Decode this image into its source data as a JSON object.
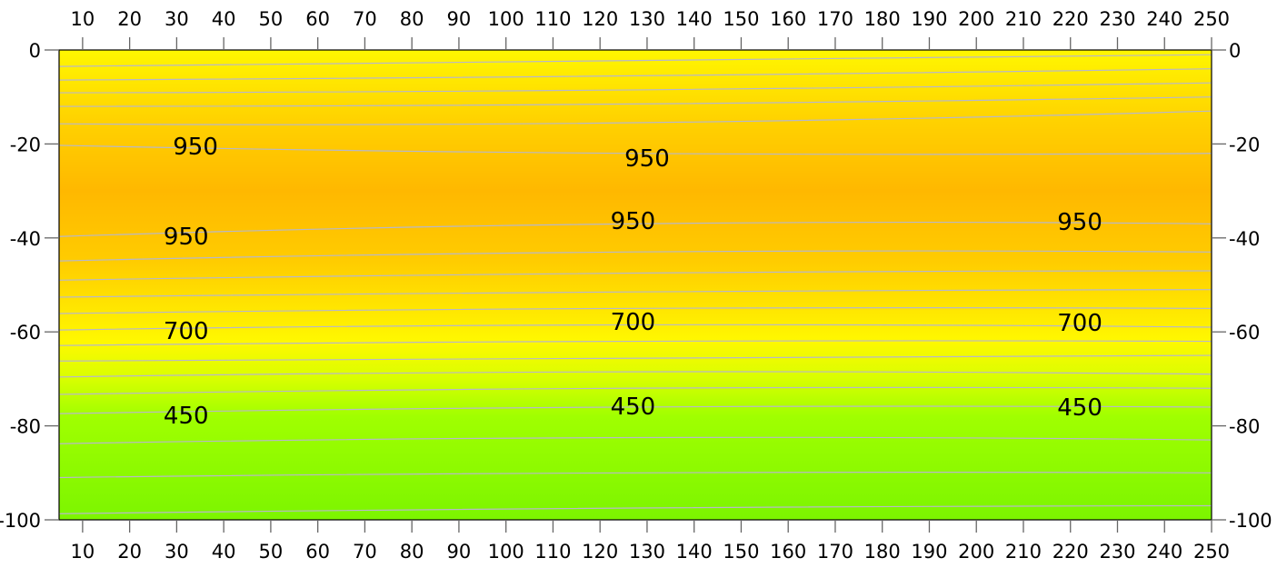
{
  "chart_data": {
    "type": "heatmap",
    "subtype": "filled-contour",
    "title": "",
    "xlabel": "",
    "ylabel": "",
    "xlim": [
      5,
      250
    ],
    "ylim": [
      -100,
      0
    ],
    "x_ticks": [
      10,
      20,
      30,
      40,
      50,
      60,
      70,
      80,
      90,
      100,
      110,
      120,
      130,
      140,
      150,
      160,
      170,
      180,
      190,
      200,
      210,
      220,
      230,
      240,
      250
    ],
    "y_ticks": [
      0,
      -20,
      -40,
      -60,
      -80,
      -100
    ],
    "axes": {
      "top": true,
      "bottom": true,
      "left": true,
      "right": true
    },
    "grid": false,
    "colors": {
      "fill_stops": [
        {
          "y": 0,
          "color": "#fff700"
        },
        {
          "y": -15,
          "color": "#ffd200"
        },
        {
          "y": -30,
          "color": "#ffb800"
        },
        {
          "y": -45,
          "color": "#ffcc00"
        },
        {
          "y": -62,
          "color": "#fff800"
        },
        {
          "y": -70,
          "color": "#d8ff00"
        },
        {
          "y": -78,
          "color": "#a0ff00"
        },
        {
          "y": -100,
          "color": "#7cf500"
        }
      ],
      "contour_line": "#b8b8c8"
    },
    "contour_x": [
      5,
      125,
      250
    ],
    "contours": [
      [
        -3.5,
        -2,
        -1
      ],
      [
        -6.4,
        -5.5,
        -4
      ],
      [
        -9.1,
        -8.5,
        -7
      ],
      [
        -12,
        -11.5,
        -10
      ],
      [
        -15.7,
        -15.5,
        -13
      ],
      [
        -20.3,
        -22,
        -22
      ],
      [
        -39.7,
        -37,
        -37
      ],
      [
        -44.9,
        -43,
        -43
      ],
      [
        -49,
        -47.5,
        -47
      ],
      [
        -52.6,
        -51.5,
        -51
      ],
      [
        -56.1,
        -55,
        -55
      ],
      [
        -59.6,
        -58.5,
        -59
      ],
      [
        -62.9,
        -62,
        -62
      ],
      [
        -66.2,
        -65.5,
        -65
      ],
      [
        -69.6,
        -68.5,
        -69
      ],
      [
        -73.3,
        -72,
        -72
      ],
      [
        -77.4,
        -76,
        -76
      ],
      [
        -83.8,
        -82.5,
        -83
      ],
      [
        -91,
        -90,
        -90
      ],
      [
        -98.7,
        -97.5,
        -97
      ]
    ],
    "contour_labels": [
      {
        "text": "950",
        "x": 34,
        "y": -20.5
      },
      {
        "text": "950",
        "x": 130,
        "y": -23
      },
      {
        "text": "950",
        "x": 32,
        "y": -39.7
      },
      {
        "text": "950",
        "x": 127,
        "y": -36.4
      },
      {
        "text": "950",
        "x": 222,
        "y": -36.6
      },
      {
        "text": "700",
        "x": 32,
        "y": -59.8
      },
      {
        "text": "700",
        "x": 127,
        "y": -57.8
      },
      {
        "text": "700",
        "x": 222,
        "y": -58
      },
      {
        "text": "450",
        "x": 32,
        "y": -77.8
      },
      {
        "text": "450",
        "x": 127,
        "y": -75.8
      },
      {
        "text": "450",
        "x": 222,
        "y": -76
      }
    ]
  }
}
